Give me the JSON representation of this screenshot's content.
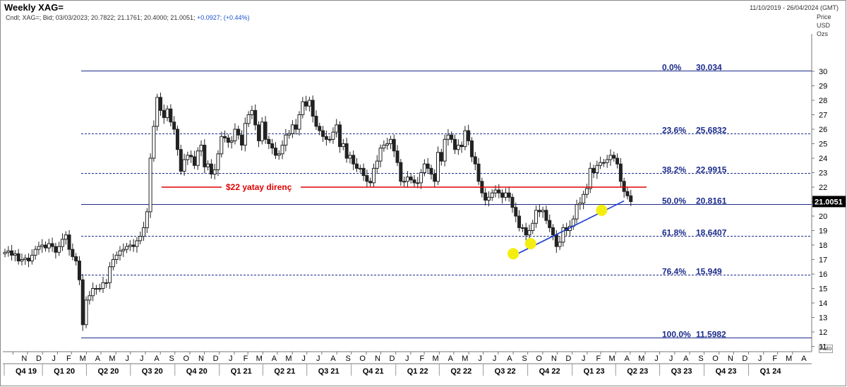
{
  "header": {
    "title": "Weekly XAG=",
    "date_range": "11/10/2019 - 26/04/2024 (GMT)",
    "ohlc_line": "Cndl; XAG=; Bid; 03/03/2023; 20.7822; 21.1761; 20.4000; 21.0051;",
    "change_text": "+0.0927; (+0.44%)"
  },
  "axis": {
    "price_label": "Price",
    "currency_label": "USD",
    "unit_label": "Ozs",
    "auto_label": "Auto",
    "last_price": "21.0051"
  },
  "colors": {
    "fib_line": "#1c2c8c",
    "resistance": "#e00000",
    "trendline": "#1a3cd0",
    "marker": "#f4ee10",
    "price_tag": "#000000"
  },
  "chart_data": {
    "type": "candlestick",
    "symbol": "XAG=",
    "interval": "Weekly",
    "ylim": [
      11,
      30.5
    ],
    "yticks": [
      11,
      12,
      13,
      14,
      15,
      16,
      17,
      18,
      19,
      20,
      21,
      22,
      23,
      24,
      25,
      26,
      27,
      28,
      29,
      30
    ],
    "months": [
      "N",
      "D",
      "J",
      "F",
      "M",
      "A",
      "M",
      "J",
      "J",
      "A",
      "S",
      "O",
      "N",
      "D",
      "J",
      "F",
      "M",
      "A",
      "M",
      "J",
      "J",
      "A",
      "S",
      "O",
      "N",
      "D",
      "J",
      "F",
      "M",
      "A",
      "M",
      "J",
      "J",
      "A",
      "S",
      "O",
      "N",
      "D",
      "J",
      "F",
      "M",
      "A",
      "M",
      "J",
      "J",
      "A",
      "S",
      "O",
      "N",
      "D",
      "J",
      "F",
      "M",
      "A"
    ],
    "quarters": [
      "Q4 19",
      "Q1 20",
      "Q2 20",
      "Q3 20",
      "Q4 20",
      "Q1 21",
      "Q2 21",
      "Q3 21",
      "Q4 21",
      "Q1 22",
      "Q2 22",
      "Q3 22",
      "Q4 22",
      "Q1 23",
      "Q2 23",
      "Q3 23",
      "Q4 23",
      "Q1 24"
    ],
    "fib_levels": [
      {
        "label": "0.0%",
        "value": "30.034"
      },
      {
        "label": "23.6%",
        "value": "25.6832"
      },
      {
        "label": "38.2%",
        "value": "22.9915"
      },
      {
        "label": "50.0%",
        "value": "20.8161"
      },
      {
        "label": "61.8%",
        "value": "18.6407"
      },
      {
        "label": "76.4%",
        "value": "15.949"
      },
      {
        "label": "100.0%",
        "value": "11.5982"
      }
    ],
    "resistance": {
      "label": "$22 yatay direnç",
      "price": 22.0
    },
    "trendline": {
      "from": {
        "date": "2022-08-29",
        "price": 17.2
      },
      "to": {
        "date": "2023-03-13",
        "price": 21.1
      }
    },
    "markers": [
      {
        "date": "2022-09-01",
        "price": 17.4
      },
      {
        "date": "2022-10-07",
        "price": 18.1
      },
      {
        "date": "2023-03-03",
        "price": 20.4
      }
    ],
    "closes": [
      17.5,
      17.6,
      17.3,
      17.4,
      16.9,
      17.0,
      17.1,
      16.9,
      17.3,
      17.7,
      17.9,
      18.0,
      17.8,
      18.1,
      17.9,
      17.5,
      17.9,
      18.4,
      18.7,
      17.7,
      17.2,
      16.9,
      15.6,
      12.5,
      14.2,
      14.5,
      15.0,
      15.0,
      15.0,
      15.4,
      15.4,
      16.5,
      17.0,
      17.3,
      17.6,
      17.7,
      17.9,
      18.0,
      17.9,
      18.3,
      18.6,
      19.2,
      20.3,
      24.0,
      26.2,
      28.2,
      27.3,
      26.8,
      27.4,
      26.5,
      26.0,
      24.6,
      23.1,
      23.9,
      24.2,
      24.1,
      23.5,
      24.5,
      24.9,
      23.4,
      23.6,
      22.9,
      23.2,
      24.3,
      25.5,
      25.4,
      25.1,
      25.2,
      26.0,
      25.6,
      24.9,
      26.4,
      27.0,
      27.3,
      26.3,
      25.2,
      26.5,
      25.3,
      25.0,
      24.7,
      24.2,
      24.3,
      24.9,
      25.6,
      25.7,
      26.3,
      26.0,
      27.0,
      27.9,
      27.6,
      28.0,
      26.9,
      26.2,
      25.9,
      25.5,
      25.3,
      25.3,
      25.8,
      26.3,
      24.8,
      25.0,
      24.0,
      24.2,
      23.6,
      23.3,
      23.3,
      22.8,
      22.4,
      22.3,
      23.3,
      23.8,
      24.7,
      24.9,
      25.0,
      25.3,
      24.5,
      23.7,
      22.4,
      22.4,
      22.7,
      22.5,
      22.3,
      22.3,
      23.0,
      23.6,
      23.3,
      22.9,
      22.4,
      24.4,
      23.8,
      25.3,
      25.6,
      25.3,
      24.6,
      24.9,
      24.8,
      25.9,
      25.2,
      24.1,
      23.6,
      22.4,
      21.6,
      21.1,
      21.3,
      21.6,
      21.8,
      21.6,
      21.3,
      21.6,
      21.3,
      20.6,
      20.0,
      19.2,
      19.2,
      18.7,
      19.0,
      19.5,
      20.4,
      20.3,
      20.4,
      19.7,
      19.2,
      18.7,
      17.9,
      18.2,
      19.2,
      19.0,
      19.3,
      19.8,
      20.8,
      20.9,
      21.5,
      21.9,
      23.3,
      23.0,
      23.5,
      23.7,
      23.7,
      23.9,
      24.2,
      24.0,
      23.6,
      22.4,
      21.7,
      21.4,
      21.0
    ]
  }
}
